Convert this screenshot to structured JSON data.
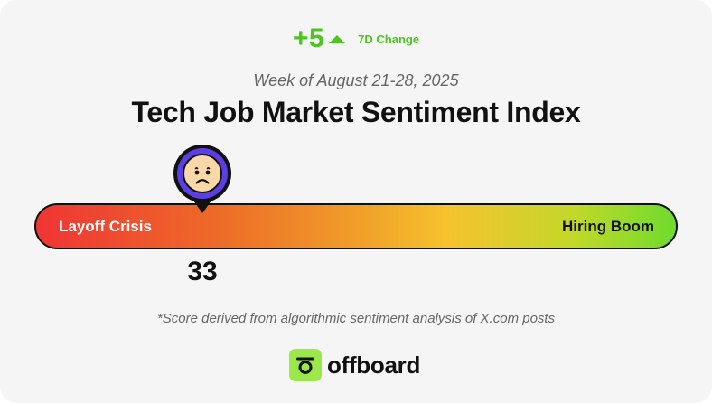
{
  "change": {
    "value": "+5",
    "direction_icon": "triangle-up-icon",
    "label": "7D Change"
  },
  "header": {
    "subtitle": "Week of August 21-28, 2025",
    "title": "Tech Job Market Sentiment Index"
  },
  "gauge": {
    "left_label": "Layoff Crisis",
    "right_label": "Hiring Boom",
    "score": "33",
    "marker_icon": "sad-face-icon",
    "colors": [
      "#ef3535",
      "#ed6a28",
      "#f0a32a",
      "#f6c22d",
      "#c3d82a",
      "#6fdb2c"
    ]
  },
  "footnote": "*Score derived from algorithmic sentiment analysis of X.com posts",
  "brand": {
    "logo_icon": "offboard-logo-icon",
    "name": "offboard",
    "accent": "#9be84a"
  },
  "theme": {
    "positive_color": "#4cc51f",
    "marker_ring_color": "#5b3fe0",
    "face_color": "#fbd8a8"
  }
}
